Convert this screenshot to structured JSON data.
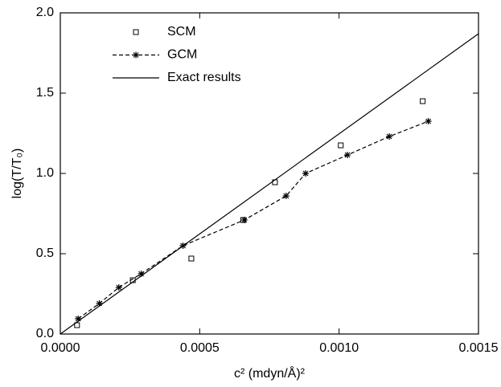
{
  "chart_data": {
    "type": "line",
    "xlabel": "c² (mdyn/Å)²",
    "ylabel": "log(T/T₀)",
    "xlim": [
      0,
      0.0015
    ],
    "ylim": [
      0,
      2
    ],
    "xticks": [
      {
        "value": 0,
        "label": "0.0000"
      },
      {
        "value": 0.0005,
        "label": "0.0005"
      },
      {
        "value": 0.001,
        "label": "0.0010"
      },
      {
        "value": 0.0015,
        "label": "0.0015"
      }
    ],
    "yticks": [
      {
        "value": 0,
        "label": "0.0"
      },
      {
        "value": 0.5,
        "label": "0.5"
      },
      {
        "value": 1,
        "label": "1.0"
      },
      {
        "value": 1.5,
        "label": "1.5"
      },
      {
        "value": 2,
        "label": "2.0"
      }
    ],
    "legend": "upper left",
    "series": [
      {
        "name": "SCM",
        "color": "#000000",
        "marker": "square",
        "line": "none",
        "x": [
          6e-05,
          0.00026,
          0.00047,
          0.000656,
          0.00077,
          0.001006,
          0.0013
        ],
        "values": [
          0.055,
          0.335,
          0.47,
          0.71,
          0.945,
          1.175,
          1.45
        ]
      },
      {
        "name": "GCM",
        "color": "#000000",
        "marker": "star",
        "line": "dashed",
        "x": [
          6.4e-05,
          0.00014,
          0.00021,
          0.00029,
          0.00044,
          0.00066,
          0.00081,
          0.00088,
          0.00103,
          0.00118,
          0.00132
        ],
        "values": [
          0.095,
          0.19,
          0.29,
          0.375,
          0.55,
          0.71,
          0.86,
          1.0,
          1.115,
          1.23,
          1.325
        ]
      },
      {
        "name": "Exact results",
        "color": "#000000",
        "marker": "none",
        "line": "solid",
        "x": [
          0,
          0.0015
        ],
        "values": [
          0,
          1.87
        ]
      }
    ]
  }
}
